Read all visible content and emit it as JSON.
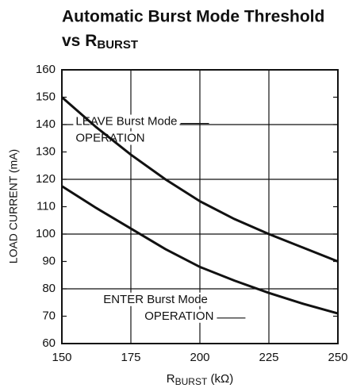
{
  "chart_data": {
    "type": "line",
    "title": "Automatic Burst Mode Threshold",
    "title_prefix": "vs R",
    "title_subscript": "BURST",
    "x_label_prefix": "R",
    "x_label_subscript": "BURST",
    "x_label_suffix": " (kΩ)",
    "y_label": "LOAD CURRENT (mA)",
    "x": [
      150,
      162.5,
      175,
      187.5,
      200,
      212.5,
      225,
      237.5,
      250
    ],
    "series": [
      {
        "color": "#111111",
        "values": [
          150,
          139,
          129,
          120,
          112,
          105.5,
          100,
          95,
          90
        ]
      },
      {
        "color": "#111111",
        "values": [
          117.5,
          109.5,
          102,
          94.5,
          88,
          83,
          78.5,
          74.5,
          71
        ]
      }
    ],
    "annotations": [
      {
        "lines": [
          "LEAVE Burst Mode",
          "OPERATION"
        ],
        "x": 155,
        "y": 141
      },
      {
        "lines": [
          "ENTER Burst Mode",
          "OPERATION"
        ],
        "x": 165,
        "y": 76
      }
    ],
    "xlim": [
      150,
      250
    ],
    "xticks": [
      150,
      175,
      200,
      225,
      250
    ],
    "ylim": [
      60,
      160
    ],
    "yticks": [
      60,
      70,
      80,
      90,
      100,
      110,
      120,
      130,
      140,
      150,
      160
    ],
    "ygrid": [
      80,
      100,
      120,
      140
    ],
    "grid": true
  }
}
